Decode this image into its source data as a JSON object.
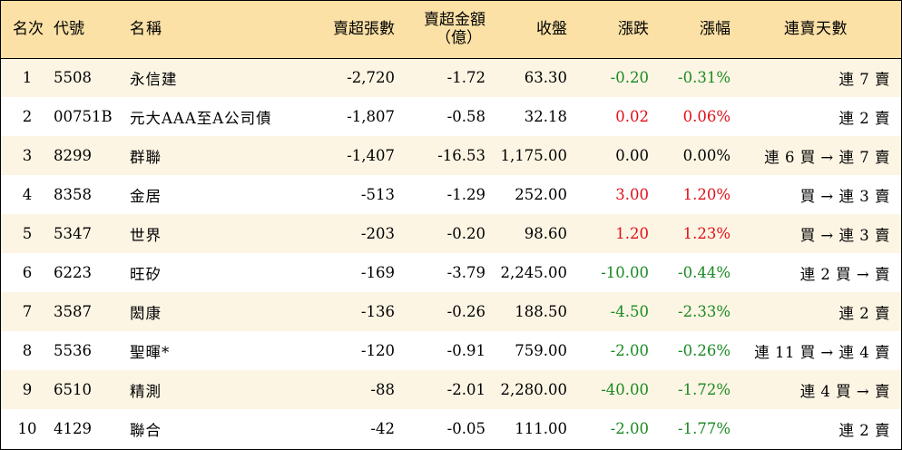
{
  "headers": {
    "rank": "名次",
    "code": "代號",
    "name": "名稱",
    "sell_lots": "賣超張數",
    "sell_amount_l1": "賣超金額",
    "sell_amount_l2": "（億）",
    "close": "收盤",
    "change": "漲跌",
    "change_pct": "漲幅",
    "streak": "連賣天數"
  },
  "rows": [
    {
      "rank": "1",
      "code": "5508",
      "name": "永信建",
      "lots": "-2,720",
      "amount": "-1.72",
      "close": "63.30",
      "change": "-0.20",
      "pct": "-0.31%",
      "dir": "down",
      "streak": "連 7 賣"
    },
    {
      "rank": "2",
      "code": "00751B",
      "name": "元大AAA至A公司債",
      "lots": "-1,807",
      "amount": "-0.58",
      "close": "32.18",
      "change": "0.02",
      "pct": "0.06%",
      "dir": "up",
      "streak": "連 2 賣"
    },
    {
      "rank": "3",
      "code": "8299",
      "name": "群聯",
      "lots": "-1,407",
      "amount": "-16.53",
      "close": "1,175.00",
      "change": "0.00",
      "pct": "0.00%",
      "dir": "flat",
      "streak": "連 6 買 → 連 7 賣"
    },
    {
      "rank": "4",
      "code": "8358",
      "name": "金居",
      "lots": "-513",
      "amount": "-1.29",
      "close": "252.00",
      "change": "3.00",
      "pct": "1.20%",
      "dir": "up",
      "streak": "買 → 連 3 賣"
    },
    {
      "rank": "5",
      "code": "5347",
      "name": "世界",
      "lots": "-203",
      "amount": "-0.20",
      "close": "98.60",
      "change": "1.20",
      "pct": "1.23%",
      "dir": "up",
      "streak": "買 → 連 3 賣"
    },
    {
      "rank": "6",
      "code": "6223",
      "name": "旺矽",
      "lots": "-169",
      "amount": "-3.79",
      "close": "2,245.00",
      "change": "-10.00",
      "pct": "-0.44%",
      "dir": "down",
      "streak": "連 2 買 → 賣"
    },
    {
      "rank": "7",
      "code": "3587",
      "name": "閎康",
      "lots": "-136",
      "amount": "-0.26",
      "close": "188.50",
      "change": "-4.50",
      "pct": "-2.33%",
      "dir": "down",
      "streak": "連 2 賣"
    },
    {
      "rank": "8",
      "code": "5536",
      "name": "聖暉*",
      "lots": "-120",
      "amount": "-0.91",
      "close": "759.00",
      "change": "-2.00",
      "pct": "-0.26%",
      "dir": "down",
      "streak": "連 11 買 → 連 4 賣"
    },
    {
      "rank": "9",
      "code": "6510",
      "name": "精測",
      "lots": "-88",
      "amount": "-2.01",
      "close": "2,280.00",
      "change": "-40.00",
      "pct": "-1.72%",
      "dir": "down",
      "streak": "連 4 買 → 賣"
    },
    {
      "rank": "10",
      "code": "4129",
      "name": "聯合",
      "lots": "-42",
      "amount": "-0.05",
      "close": "111.00",
      "change": "-2.00",
      "pct": "-1.77%",
      "dir": "down",
      "streak": "連 2 賣"
    }
  ],
  "colors": {
    "header_bg": "#fbe1a6",
    "alt_row_bg": "#fdf5e4",
    "up": "#e0101a",
    "down": "#1a8a22"
  }
}
